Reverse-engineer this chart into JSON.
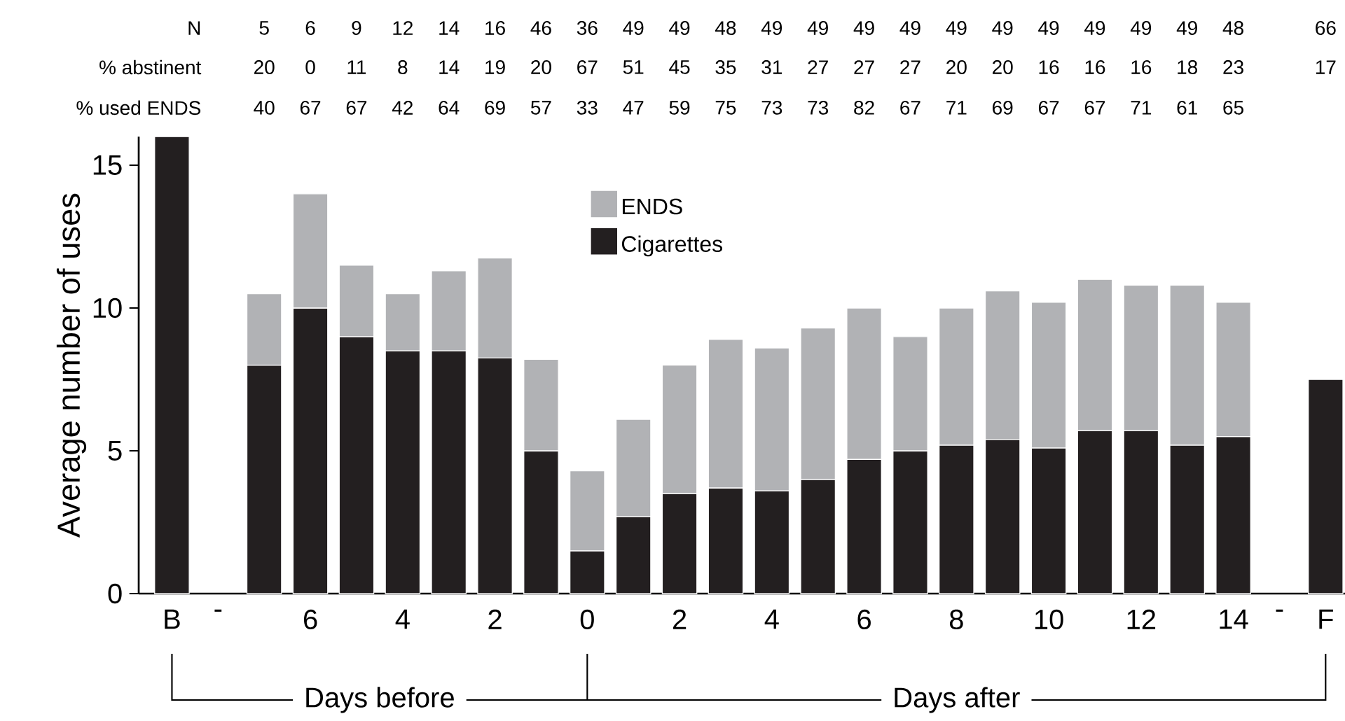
{
  "chart_data": {
    "type": "bar",
    "stacked": true,
    "ylabel": "Average number of uses",
    "categories": [
      "B",
      "-",
      null,
      "6",
      null,
      "4",
      null,
      "2",
      null,
      "0",
      null,
      "2",
      null,
      "4",
      null,
      "6",
      null,
      "8",
      null,
      "10",
      null,
      "12",
      null,
      "14",
      "-",
      "F"
    ],
    "series": [
      {
        "name": "Cigarettes",
        "color": "#231f20",
        "values": [
          16,
          null,
          8,
          10,
          9,
          8.5,
          8.5,
          8.25,
          5,
          1.5,
          2.7,
          3.5,
          3.7,
          3.6,
          4.0,
          4.7,
          5.0,
          5.2,
          5.4,
          5.1,
          5.7,
          5.7,
          5.2,
          5.5,
          null,
          7.5
        ]
      },
      {
        "name": "ENDS",
        "color": "#b1b2b5",
        "values": [
          null,
          null,
          2.5,
          4.0,
          2.5,
          2.0,
          2.8,
          3.5,
          3.2,
          2.8,
          3.4,
          4.5,
          5.2,
          5.0,
          5.3,
          5.3,
          4.0,
          4.8,
          5.2,
          5.1,
          5.3,
          5.1,
          5.6,
          4.7,
          null,
          null
        ]
      }
    ],
    "ylim": [
      0,
      16
    ],
    "yticks": [
      0,
      5,
      10,
      15
    ],
    "legend": "top",
    "annotations": [
      "N",
      "5",
      "6",
      "9",
      "12",
      "14",
      "16",
      "46",
      "36",
      "49",
      "49",
      "48",
      "49",
      "49",
      "49",
      "49",
      "49",
      "49",
      "49",
      "49",
      "49",
      "49",
      "48",
      "66",
      "% abstinent",
      "20",
      "0",
      "11",
      "8",
      "14",
      "19",
      "20",
      "67",
      "51",
      "45",
      "35",
      "31",
      "27",
      "27",
      "27",
      "20",
      "20",
      "16",
      "16",
      "16",
      "18",
      "23",
      "17",
      "% used ENDS",
      "40",
      "67",
      "67",
      "42",
      "64",
      "69",
      "57",
      "33",
      "47",
      "59",
      "75",
      "73",
      "73",
      "82",
      "67",
      "71",
      "69",
      "67",
      "67",
      "71",
      "61",
      "65",
      "Days before",
      "Days after"
    ]
  }
}
